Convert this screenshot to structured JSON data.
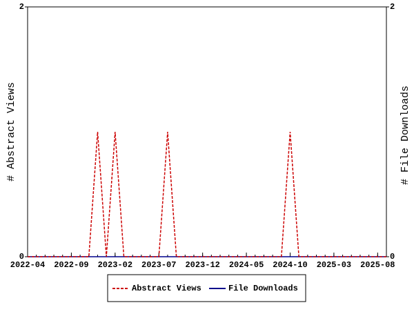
{
  "chart_data": {
    "type": "line",
    "x": [
      "2022-04",
      "2022-05",
      "2022-06",
      "2022-07",
      "2022-08",
      "2022-09",
      "2022-10",
      "2022-11",
      "2022-12",
      "2023-01",
      "2023-02",
      "2023-03",
      "2023-04",
      "2023-05",
      "2023-06",
      "2023-07",
      "2023-08",
      "2023-09",
      "2023-10",
      "2023-11",
      "2023-12",
      "2024-01",
      "2024-02",
      "2024-03",
      "2024-04",
      "2024-05",
      "2024-06",
      "2024-07",
      "2024-08",
      "2024-09",
      "2024-10",
      "2024-11",
      "2024-12",
      "2025-01",
      "2025-02",
      "2025-03",
      "2025-04",
      "2025-05",
      "2025-06",
      "2025-07",
      "2025-08",
      "2025-09"
    ],
    "xticks": [
      "2022-04",
      "2022-09",
      "2023-02",
      "2023-07",
      "2023-12",
      "2024-05",
      "2024-10",
      "2025-03",
      "2025-08"
    ],
    "ylabel": "# Abstract Views",
    "y2label": "# File Downloads",
    "ylim": [
      0,
      2
    ],
    "yticks": [
      0,
      2
    ],
    "y2lim": [
      0,
      2
    ],
    "y2ticks": [
      0,
      2
    ],
    "series": [
      {
        "name": "Abstract Views",
        "color": "#cc0000",
        "line_style": "dashed",
        "values": [
          0,
          0,
          0,
          0,
          0,
          0,
          0,
          0,
          1,
          0,
          1,
          0,
          0,
          0,
          0,
          0,
          1,
          0,
          0,
          0,
          0,
          0,
          0,
          0,
          0,
          0,
          0,
          0,
          0,
          0,
          1,
          0,
          0,
          0,
          0,
          0,
          0,
          0,
          0,
          0,
          0,
          0
        ]
      },
      {
        "name": "File Downloads",
        "color": "#00008b",
        "line_style": "solid",
        "axis": "y2",
        "values": [
          0,
          0,
          0,
          0,
          0,
          0,
          0,
          0,
          0,
          0,
          0,
          0,
          0,
          0,
          0,
          0,
          0,
          0,
          0,
          0,
          0,
          0,
          0,
          0,
          0,
          0,
          0,
          0,
          0,
          0,
          0,
          0,
          0,
          0,
          0,
          0,
          0,
          0,
          0,
          0,
          0,
          0
        ]
      }
    ]
  }
}
